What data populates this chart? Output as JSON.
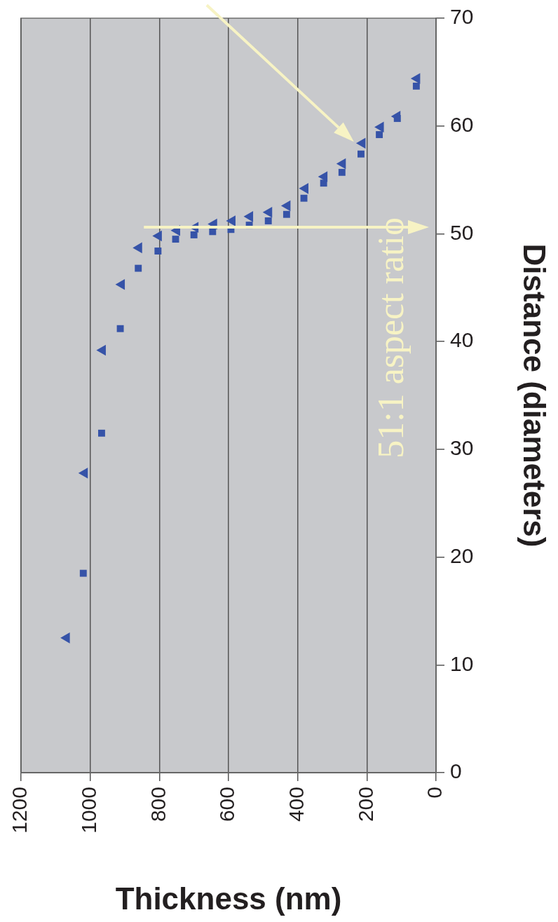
{
  "chart_data": {
    "type": "scatter",
    "xlabel": "Thickness (nm)",
    "ylabel": "Distance (diameters)",
    "xlim": [
      1200,
      0
    ],
    "xticks": [
      1200,
      1000,
      800,
      600,
      400,
      200,
      0
    ],
    "ylim": [
      0,
      70
    ],
    "yticks": [
      0,
      10,
      20,
      30,
      40,
      50,
      60,
      70
    ],
    "grid": "x",
    "annotations": [
      "51:1 aspect ratio"
    ],
    "series": [
      {
        "color": "#3653a8",
        "marker": "triangle",
        "x": [
          1068,
          1016,
          964,
          909,
          859,
          802,
          749,
          696,
          642,
          589,
          538,
          483,
          430,
          378,
          323,
          270,
          213,
          160,
          112,
          55
        ],
        "values": [
          12.5,
          27.8,
          39.2,
          45.3,
          48.7,
          49.8,
          50.3,
          50.6,
          50.9,
          51.2,
          51.6,
          52.0,
          52.6,
          54.2,
          55.3,
          56.5,
          58.4,
          59.9,
          60.9,
          64.4
        ]
      },
      {
        "color": "#3653a8",
        "marker": "square",
        "x": [
          1020,
          967,
          913,
          861,
          804,
          753,
          700,
          646,
          593,
          540,
          485,
          432,
          382,
          325,
          272,
          217,
          164,
          112,
          57
        ],
        "values": [
          18.5,
          31.5,
          41.2,
          46.8,
          48.4,
          49.5,
          49.9,
          50.2,
          50.4,
          50.8,
          51.2,
          51.8,
          53.3,
          54.7,
          55.7,
          57.4,
          59.2,
          60.7,
          63.7
        ]
      }
    ]
  }
}
